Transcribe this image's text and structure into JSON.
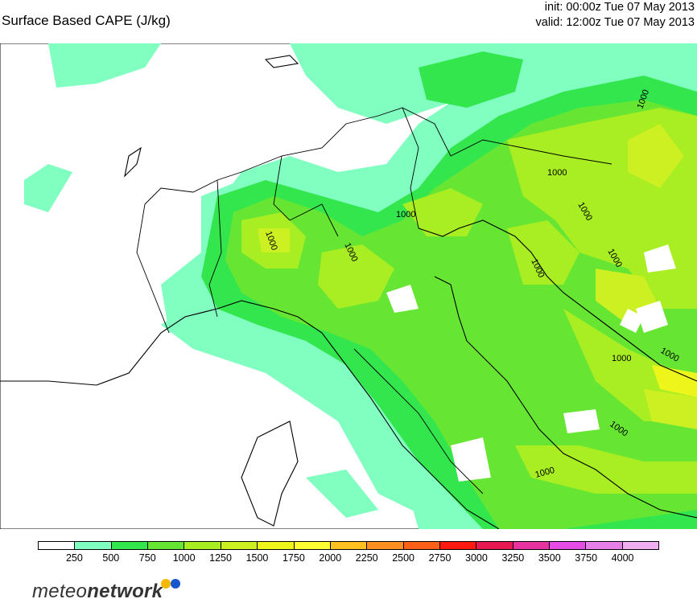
{
  "header": {
    "title": "Surface Based CAPE (J/kg)",
    "init": "init: 00:00z Tue 07 May 2013",
    "valid": "valid: 12:00z Tue 07 May 2013"
  },
  "map": {
    "contour_labels": [
      "1000",
      "1000",
      "1000",
      "1000",
      "1000",
      "1000",
      "1000",
      "1000",
      "1000",
      "1000",
      "1000",
      "1000"
    ],
    "colors": {
      "c250": "#80ffc0",
      "c500": "#33e64d",
      "c750": "#66e633",
      "c1000": "#a8ee22",
      "c1250": "#ccf022",
      "c1500": "#eef51a",
      "land_empty": "#ffffff",
      "border": "#000000"
    }
  },
  "legend": {
    "ticks": [
      "250",
      "500",
      "750",
      "1000",
      "1250",
      "1500",
      "1750",
      "2000",
      "2250",
      "2500",
      "2750",
      "3000",
      "3250",
      "3500",
      "3750",
      "4000"
    ],
    "colors": [
      "#ffffff",
      "#80ffc0",
      "#33e64d",
      "#66e633",
      "#a8ee22",
      "#ccf022",
      "#eef51a",
      "#ffff33",
      "#ffc020",
      "#ff9020",
      "#ff6018",
      "#ff1a10",
      "#e61a50",
      "#e633a0",
      "#e64de6",
      "#e680e6",
      "#f0b0f0"
    ]
  },
  "brand": {
    "text_light": "meteo",
    "text_bold": "network",
    "dot1_color": "#f5b800",
    "dot2_color": "#1a55d0"
  }
}
